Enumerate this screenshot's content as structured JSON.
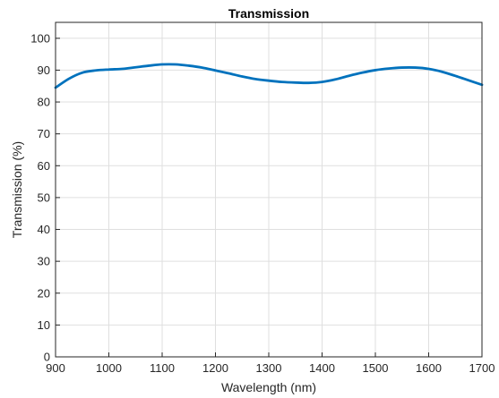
{
  "chart_data": {
    "type": "line",
    "title": "Transmission",
    "xlabel": "Wavelength (nm)",
    "ylabel": "Transmission (%)",
    "xlim": [
      900,
      1700
    ],
    "ylim": [
      0,
      105
    ],
    "xticks": [
      900,
      1000,
      1100,
      1200,
      1300,
      1400,
      1500,
      1600,
      1700
    ],
    "yticks": [
      0,
      10,
      20,
      30,
      40,
      50,
      60,
      70,
      80,
      90,
      100
    ],
    "grid": true,
    "legend": "none",
    "series": [
      {
        "color": "#0072BD",
        "x": [
          900,
          925,
          950,
          975,
          1000,
          1025,
          1050,
          1075,
          1100,
          1125,
          1150,
          1175,
          1200,
          1225,
          1250,
          1275,
          1300,
          1325,
          1350,
          1375,
          1400,
          1425,
          1450,
          1475,
          1500,
          1525,
          1550,
          1575,
          1600,
          1625,
          1650,
          1675,
          1700
        ],
        "y": [
          84.5,
          87.3,
          89.2,
          89.9,
          90.2,
          90.4,
          90.9,
          91.4,
          91.8,
          91.8,
          91.4,
          90.8,
          89.9,
          89.0,
          88.0,
          87.2,
          86.7,
          86.3,
          86.1,
          86.0,
          86.3,
          87.1,
          88.2,
          89.2,
          90.0,
          90.5,
          90.8,
          90.8,
          90.4,
          89.5,
          88.2,
          86.8,
          85.4
        ]
      }
    ]
  }
}
